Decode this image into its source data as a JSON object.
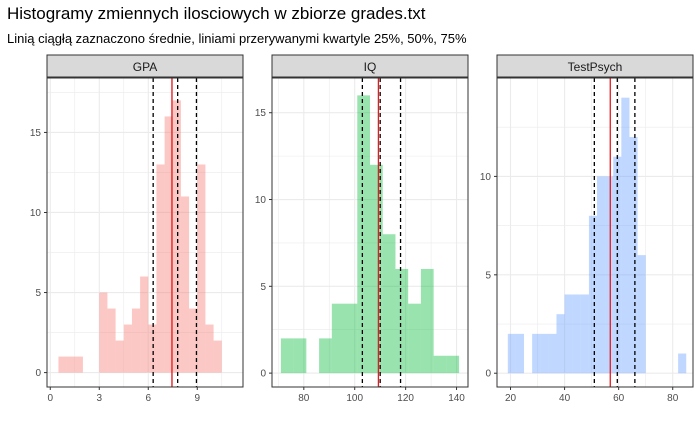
{
  "title": "Histogramy zmiennych ilosciowych w zbiorze grades.txt",
  "subtitle": "Linią ciągłą zaznaczono średnie, liniami przerywanymi kwartyle 25%, 50%, 75%",
  "colors": {
    "mean_line": "#e41a1c",
    "quartile_line": "#000000",
    "strip_fill": "#d9d9d9",
    "grid": "#ebebeb"
  },
  "chart_data": [
    {
      "type": "bar",
      "panel_label": "GPA",
      "bar_color": "#f8766d",
      "bin_width": 0.5,
      "bin_left_edges": [
        0.5,
        1,
        1.5,
        2,
        2.5,
        3,
        3.5,
        4,
        4.5,
        5,
        5.5,
        6,
        6.5,
        7,
        7.5,
        8,
        8.5,
        9,
        9.5,
        10,
        10.5,
        11
      ],
      "counts": [
        1,
        1,
        1,
        0,
        0,
        5,
        4,
        2,
        3,
        4,
        6,
        3,
        13,
        16,
        17,
        11,
        4,
        13,
        3,
        2,
        0,
        0
      ],
      "mean": 7.45,
      "quartiles": [
        6.3,
        7.8,
        8.95
      ],
      "xlim": [
        -0.2,
        11.8
      ],
      "ylim": [
        -0.9,
        18.4
      ],
      "x_ticks": [
        0,
        3,
        6,
        9
      ],
      "y_ticks": [
        0,
        5,
        10,
        15
      ],
      "grid": true
    },
    {
      "type": "bar",
      "panel_label": "IQ",
      "bar_color": "#00ba38",
      "bin_width": 5,
      "bin_left_edges": [
        71,
        76,
        81,
        86,
        91,
        96,
        101,
        106,
        111,
        116,
        121,
        126,
        131,
        136
      ],
      "counts": [
        2,
        2,
        0,
        2,
        4,
        4,
        16,
        12,
        8,
        6,
        4,
        6,
        1,
        1
      ],
      "mean": 109.3,
      "quartiles": [
        103,
        110,
        118
      ],
      "xlim": [
        67.5,
        144.5
      ],
      "ylim": [
        -0.8,
        17
      ],
      "x_ticks": [
        80,
        100,
        120,
        140
      ],
      "y_ticks": [
        0,
        5,
        10,
        15
      ],
      "grid": true
    },
    {
      "type": "bar",
      "panel_label": "TestPsych",
      "bar_color": "#619cff",
      "bin_width": 3,
      "bin_left_edges": [
        19,
        22,
        25,
        28,
        31,
        34,
        37,
        40,
        43,
        46,
        49,
        52,
        55,
        58,
        61,
        64,
        67,
        70,
        73,
        76,
        79,
        82
      ],
      "counts": [
        2,
        2,
        0,
        2,
        2,
        2,
        3,
        4,
        4,
        4,
        8,
        10,
        10,
        11,
        14,
        12,
        6,
        0,
        0,
        0,
        0,
        1
      ],
      "mean": 56.9,
      "quartiles": [
        51,
        59.5,
        66
      ],
      "xlim": [
        15,
        87.5
      ],
      "ylim": [
        -0.7,
        15
      ],
      "x_ticks": [
        20,
        40,
        60,
        80
      ],
      "y_ticks": [
        0,
        5,
        10
      ],
      "grid": true
    }
  ]
}
